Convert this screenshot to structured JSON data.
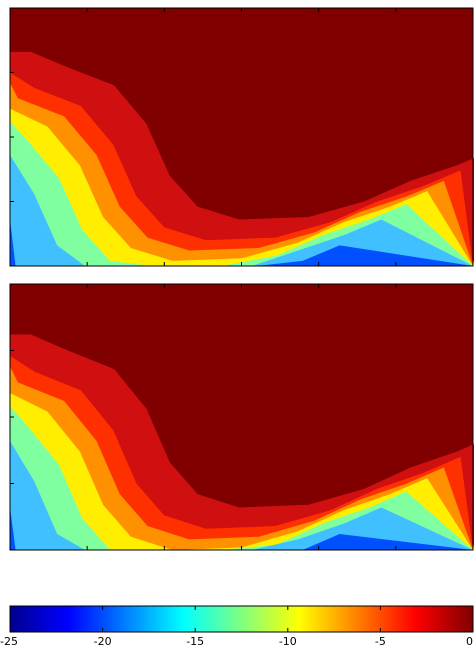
{
  "chart_data": {
    "type": "colorbar",
    "xlim": [
      -25,
      0
    ],
    "xticks": [
      -25,
      -20,
      -15,
      -10,
      -5,
      0
    ],
    "colormap": [
      "#00008f",
      "#0000ff",
      "#00ffff",
      "#ffff00",
      "#ff0000",
      "#800000"
    ]
  }
}
